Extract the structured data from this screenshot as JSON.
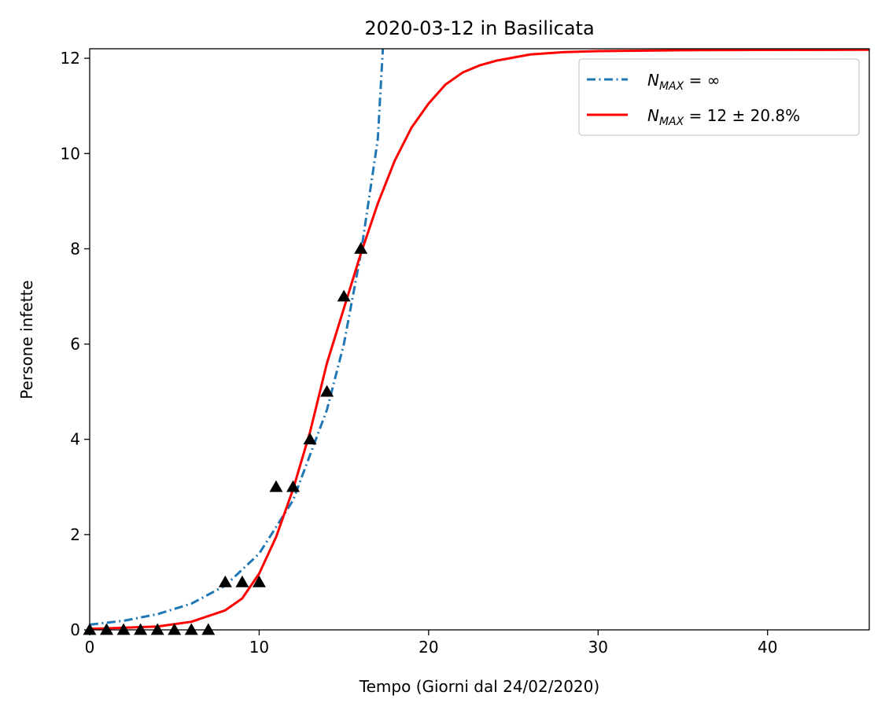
{
  "chart_data": {
    "type": "line",
    "title": "2020-03-12 in Basilicata",
    "xlabel": "Tempo (Giorni dal 24/02/2020)",
    "ylabel": "Persone infette",
    "xlim": [
      0,
      46
    ],
    "ylim": [
      0,
      12.2
    ],
    "xticks": [
      0,
      10,
      20,
      30,
      40
    ],
    "yticks": [
      0,
      2,
      4,
      6,
      8,
      10,
      12
    ],
    "grid": false,
    "legend_position": "top-right",
    "series": [
      {
        "name": "N_MAX = ∞",
        "legend": {
          "base": "N",
          "sub": "MAX",
          "rest": " = ∞"
        },
        "kind": "exponential-fit",
        "style": "dash-dot",
        "color": "#1f77b4",
        "x": [
          0,
          2,
          4,
          6,
          8,
          10,
          12,
          14,
          15,
          16,
          17,
          17.3
        ],
        "y": [
          0.11,
          0.19,
          0.33,
          0.55,
          0.93,
          1.6,
          2.72,
          4.62,
          6.0,
          7.9,
          10.3,
          12.2
        ]
      },
      {
        "name": "N_MAX = 12 ± 20.8%",
        "legend": {
          "base": "N",
          "sub": "MAX",
          "rest": " = 12 ± 20.8%"
        },
        "kind": "logistic-fit",
        "style": "solid",
        "color": "#ff0000",
        "x": [
          0,
          4,
          6,
          8,
          9,
          10,
          11,
          12,
          13,
          14,
          15,
          16,
          17,
          18,
          19,
          20,
          21,
          22,
          23,
          24,
          26,
          28,
          30,
          35,
          46
        ],
        "y": [
          0.02,
          0.07,
          0.17,
          0.41,
          0.66,
          1.18,
          1.95,
          2.95,
          4.15,
          5.6,
          6.75,
          7.9,
          8.95,
          9.85,
          10.55,
          11.05,
          11.45,
          11.7,
          11.85,
          11.95,
          12.08,
          12.13,
          12.15,
          12.17,
          12.18
        ]
      },
      {
        "name": "data",
        "kind": "markers",
        "marker": "triangle-up",
        "color": "#000000",
        "x": [
          0,
          1,
          2,
          3,
          4,
          5,
          6,
          7,
          8,
          9,
          10,
          11,
          12,
          13,
          14,
          15,
          16
        ],
        "y": [
          0,
          0,
          0,
          0,
          0,
          0,
          0,
          0,
          1,
          1,
          1,
          3,
          3,
          4,
          5,
          7,
          8
        ]
      }
    ]
  }
}
